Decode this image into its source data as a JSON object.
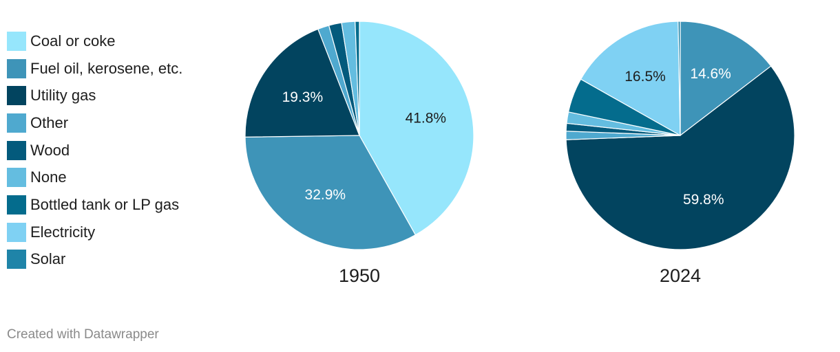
{
  "legend": [
    {
      "label": "Coal or coke",
      "color": "#96e6fc"
    },
    {
      "label": "Fuel oil, kerosene, etc.",
      "color": "#3e94b8"
    },
    {
      "label": "Utility gas",
      "color": "#02445f"
    },
    {
      "label": "Other",
      "color": "#4fa9cf"
    },
    {
      "label": "Wood",
      "color": "#035a7c"
    },
    {
      "label": "None",
      "color": "#64bde0"
    },
    {
      "label": "Bottled tank or LP gas",
      "color": "#046c8d"
    },
    {
      "label": "Electricity",
      "color": "#7fd1f3"
    },
    {
      "label": "Solar",
      "color": "#1f84a8"
    }
  ],
  "chart_data": [
    {
      "type": "pie",
      "title": "1950",
      "slices": [
        {
          "label": "Coal or coke",
          "value": 41.8,
          "color": "#96e6fc",
          "data_label": "41.8%"
        },
        {
          "label": "Fuel oil, kerosene, etc.",
          "value": 32.9,
          "color": "#3e94b8",
          "data_label": "32.9%"
        },
        {
          "label": "Utility gas",
          "value": 19.3,
          "color": "#02445f",
          "data_label": "19.3%"
        },
        {
          "label": "Other",
          "value": 1.6,
          "color": "#4fa9cf",
          "data_label": ""
        },
        {
          "label": "Wood",
          "value": 1.8,
          "color": "#035a7c",
          "data_label": ""
        },
        {
          "label": "None",
          "value": 1.9,
          "color": "#64bde0",
          "data_label": ""
        },
        {
          "label": "Bottled tank or LP gas",
          "value": 0.6,
          "color": "#046c8d",
          "data_label": ""
        }
      ]
    },
    {
      "type": "pie",
      "title": "2024",
      "slices": [
        {
          "label": "Fuel oil, kerosene, etc.",
          "value": 14.6,
          "color": "#3e94b8",
          "data_label": "14.6%"
        },
        {
          "label": "Utility gas",
          "value": 59.8,
          "color": "#02445f",
          "data_label": "59.8%"
        },
        {
          "label": "Other",
          "value": 1.2,
          "color": "#4fa9cf",
          "data_label": ""
        },
        {
          "label": "Wood",
          "value": 1.1,
          "color": "#035a7c",
          "data_label": ""
        },
        {
          "label": "None",
          "value": 1.6,
          "color": "#64bde0",
          "data_label": ""
        },
        {
          "label": "Bottled tank or LP gas",
          "value": 4.9,
          "color": "#046c8d",
          "data_label": ""
        },
        {
          "label": "Electricity",
          "value": 16.5,
          "color": "#7fd1f3",
          "data_label": "16.5%"
        },
        {
          "label": "Solar",
          "value": 0.3,
          "color": "#1f84a8",
          "data_label": ""
        }
      ]
    }
  ],
  "footer": "Created with Datawrapper"
}
